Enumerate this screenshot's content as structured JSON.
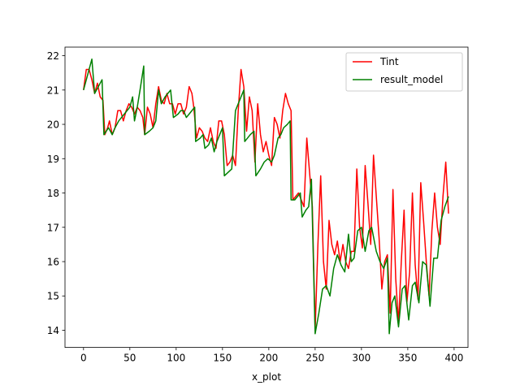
{
  "chart_data": {
    "type": "line",
    "title": "",
    "xlabel": "x_plot",
    "ylabel": "",
    "xlim": [
      -20,
      415
    ],
    "ylim": [
      13.5,
      22.25
    ],
    "xticks": [
      0,
      50,
      100,
      150,
      200,
      250,
      300,
      350,
      400
    ],
    "yticks": [
      14,
      15,
      16,
      17,
      18,
      19,
      20,
      21,
      22
    ],
    "grid": false,
    "legend_position": "upper right",
    "series": [
      {
        "name": "Tint",
        "color": "#ff0000",
        "points": [
          [
            0,
            21.0
          ],
          [
            3,
            21.6
          ],
          [
            6,
            21.6
          ],
          [
            9,
            21.3
          ],
          [
            12,
            20.9
          ],
          [
            15,
            21.2
          ],
          [
            18,
            20.8
          ],
          [
            21,
            20.7
          ],
          [
            23,
            19.7
          ],
          [
            26,
            19.9
          ],
          [
            28,
            20.1
          ],
          [
            31,
            19.7
          ],
          [
            34,
            19.9
          ],
          [
            37,
            20.4
          ],
          [
            40,
            20.4
          ],
          [
            43,
            20.1
          ],
          [
            46,
            20.4
          ],
          [
            49,
            20.6
          ],
          [
            52,
            20.5
          ],
          [
            55,
            20.3
          ],
          [
            58,
            20.5
          ],
          [
            61,
            20.4
          ],
          [
            64,
            20.2
          ],
          [
            66,
            19.7
          ],
          [
            69,
            20.5
          ],
          [
            72,
            20.3
          ],
          [
            75,
            19.9
          ],
          [
            78,
            20.6
          ],
          [
            81,
            21.1
          ],
          [
            84,
            20.7
          ],
          [
            87,
            20.6
          ],
          [
            90,
            20.9
          ],
          [
            93,
            20.6
          ],
          [
            96,
            20.6
          ],
          [
            99,
            20.3
          ],
          [
            102,
            20.6
          ],
          [
            105,
            20.6
          ],
          [
            108,
            20.3
          ],
          [
            111,
            20.5
          ],
          [
            114,
            21.1
          ],
          [
            117,
            20.9
          ],
          [
            119,
            20.5
          ],
          [
            122,
            19.6
          ],
          [
            125,
            19.9
          ],
          [
            128,
            19.8
          ],
          [
            131,
            19.6
          ],
          [
            134,
            19.5
          ],
          [
            137,
            19.9
          ],
          [
            140,
            19.5
          ],
          [
            143,
            19.3
          ],
          [
            146,
            20.1
          ],
          [
            149,
            20.1
          ],
          [
            152,
            19.7
          ],
          [
            155,
            18.8
          ],
          [
            158,
            18.9
          ],
          [
            161,
            19.1
          ],
          [
            164,
            18.8
          ],
          [
            167,
            20.4
          ],
          [
            170,
            21.6
          ],
          [
            173,
            21.1
          ],
          [
            176,
            19.8
          ],
          [
            179,
            20.8
          ],
          [
            182,
            20.4
          ],
          [
            185,
            18.9
          ],
          [
            188,
            20.6
          ],
          [
            191,
            19.7
          ],
          [
            194,
            19.2
          ],
          [
            197,
            19.5
          ],
          [
            200,
            19.1
          ],
          [
            203,
            18.8
          ],
          [
            206,
            20.2
          ],
          [
            209,
            20.0
          ],
          [
            212,
            19.6
          ],
          [
            215,
            20.4
          ],
          [
            218,
            20.9
          ],
          [
            221,
            20.6
          ],
          [
            224,
            20.4
          ],
          [
            226,
            17.8
          ],
          [
            229,
            17.9
          ],
          [
            232,
            18.0
          ],
          [
            235,
            17.8
          ],
          [
            238,
            17.6
          ],
          [
            241,
            19.6
          ],
          [
            244,
            18.6
          ],
          [
            247,
            17.6
          ],
          [
            250,
            14.0
          ],
          [
            253,
            16.5
          ],
          [
            256,
            18.5
          ],
          [
            259,
            16.0
          ],
          [
            262,
            15.2
          ],
          [
            265,
            17.2
          ],
          [
            268,
            16.5
          ],
          [
            271,
            16.2
          ],
          [
            274,
            16.6
          ],
          [
            277,
            16.0
          ],
          [
            280,
            16.5
          ],
          [
            283,
            16.0
          ],
          [
            286,
            15.8
          ],
          [
            289,
            16.3
          ],
          [
            292,
            16.3
          ],
          [
            295,
            18.7
          ],
          [
            298,
            17.0
          ],
          [
            301,
            16.4
          ],
          [
            304,
            18.8
          ],
          [
            307,
            17.7
          ],
          [
            310,
            16.5
          ],
          [
            313,
            19.1
          ],
          [
            316,
            17.9
          ],
          [
            319,
            16.7
          ],
          [
            322,
            15.2
          ],
          [
            325,
            16.0
          ],
          [
            328,
            16.2
          ],
          [
            331,
            14.5
          ],
          [
            334,
            18.1
          ],
          [
            337,
            15.5
          ],
          [
            340,
            14.2
          ],
          [
            343,
            16.0
          ],
          [
            346,
            17.5
          ],
          [
            349,
            14.8
          ],
          [
            352,
            15.7
          ],
          [
            355,
            18.0
          ],
          [
            358,
            15.9
          ],
          [
            361,
            14.9
          ],
          [
            364,
            18.3
          ],
          [
            367,
            17.2
          ],
          [
            370,
            16.0
          ],
          [
            373,
            15.0
          ],
          [
            376,
            16.9
          ],
          [
            379,
            18.0
          ],
          [
            382,
            17.0
          ],
          [
            385,
            16.5
          ],
          [
            388,
            17.9
          ],
          [
            391,
            18.9
          ],
          [
            394,
            17.4
          ]
        ]
      },
      {
        "name": "result_model",
        "color": "#008000",
        "points": [
          [
            0,
            21.0
          ],
          [
            9,
            21.9
          ],
          [
            12,
            20.9
          ],
          [
            16,
            21.1
          ],
          [
            20,
            21.3
          ],
          [
            22,
            19.7
          ],
          [
            27,
            19.9
          ],
          [
            31,
            19.7
          ],
          [
            34,
            19.9
          ],
          [
            38,
            20.1
          ],
          [
            41,
            20.2
          ],
          [
            44,
            20.3
          ],
          [
            47,
            20.4
          ],
          [
            50,
            20.5
          ],
          [
            53,
            20.8
          ],
          [
            55,
            20.1
          ],
          [
            58,
            20.5
          ],
          [
            61,
            21.0
          ],
          [
            65,
            21.7
          ],
          [
            66,
            19.7
          ],
          [
            71,
            19.8
          ],
          [
            75,
            19.9
          ],
          [
            78,
            20.1
          ],
          [
            81,
            21.0
          ],
          [
            84,
            20.6
          ],
          [
            88,
            20.8
          ],
          [
            91,
            20.9
          ],
          [
            94,
            21.0
          ],
          [
            97,
            20.2
          ],
          [
            102,
            20.3
          ],
          [
            105,
            20.4
          ],
          [
            108,
            20.4
          ],
          [
            111,
            20.2
          ],
          [
            114,
            20.3
          ],
          [
            117,
            20.4
          ],
          [
            120,
            20.5
          ],
          [
            121,
            19.5
          ],
          [
            126,
            19.6
          ],
          [
            129,
            19.7
          ],
          [
            131,
            19.3
          ],
          [
            135,
            19.4
          ],
          [
            138,
            19.6
          ],
          [
            141,
            19.2
          ],
          [
            144,
            19.5
          ],
          [
            147,
            19.7
          ],
          [
            150,
            19.9
          ],
          [
            152,
            18.5
          ],
          [
            156,
            18.6
          ],
          [
            160,
            18.7
          ],
          [
            164,
            20.4
          ],
          [
            167,
            20.6
          ],
          [
            170,
            20.8
          ],
          [
            173,
            21.0
          ],
          [
            174,
            19.5
          ],
          [
            177,
            19.6
          ],
          [
            180,
            19.7
          ],
          [
            184,
            19.8
          ],
          [
            186,
            18.5
          ],
          [
            191,
            18.7
          ],
          [
            195,
            18.9
          ],
          [
            199,
            19.0
          ],
          [
            203,
            18.9
          ],
          [
            206,
            19.1
          ],
          [
            210,
            19.6
          ],
          [
            213,
            19.7
          ],
          [
            216,
            19.9
          ],
          [
            220,
            20.0
          ],
          [
            223,
            20.1
          ],
          [
            224,
            17.8
          ],
          [
            228,
            17.8
          ],
          [
            231,
            17.9
          ],
          [
            234,
            18.0
          ],
          [
            236,
            17.3
          ],
          [
            240,
            17.5
          ],
          [
            243,
            17.6
          ],
          [
            246,
            18.4
          ],
          [
            250,
            13.9
          ],
          [
            254,
            14.5
          ],
          [
            258,
            15.2
          ],
          [
            262,
            15.3
          ],
          [
            266,
            15.0
          ],
          [
            270,
            15.8
          ],
          [
            274,
            16.2
          ],
          [
            278,
            15.9
          ],
          [
            282,
            15.7
          ],
          [
            286,
            16.8
          ],
          [
            289,
            16.0
          ],
          [
            292,
            16.1
          ],
          [
            296,
            16.9
          ],
          [
            300,
            17.0
          ],
          [
            304,
            16.3
          ],
          [
            308,
            16.9
          ],
          [
            311,
            17.0
          ],
          [
            316,
            16.3
          ],
          [
            320,
            16.0
          ],
          [
            324,
            15.8
          ],
          [
            328,
            16.1
          ],
          [
            330,
            13.9
          ],
          [
            333,
            14.8
          ],
          [
            336,
            15.0
          ],
          [
            340,
            14.1
          ],
          [
            344,
            15.2
          ],
          [
            347,
            15.3
          ],
          [
            351,
            14.3
          ],
          [
            355,
            15.3
          ],
          [
            358,
            15.4
          ],
          [
            362,
            14.8
          ],
          [
            366,
            16.0
          ],
          [
            370,
            15.9
          ],
          [
            374,
            14.7
          ],
          [
            378,
            16.1
          ],
          [
            382,
            16.1
          ],
          [
            386,
            17.2
          ],
          [
            390,
            17.6
          ],
          [
            394,
            17.9
          ]
        ]
      }
    ]
  }
}
